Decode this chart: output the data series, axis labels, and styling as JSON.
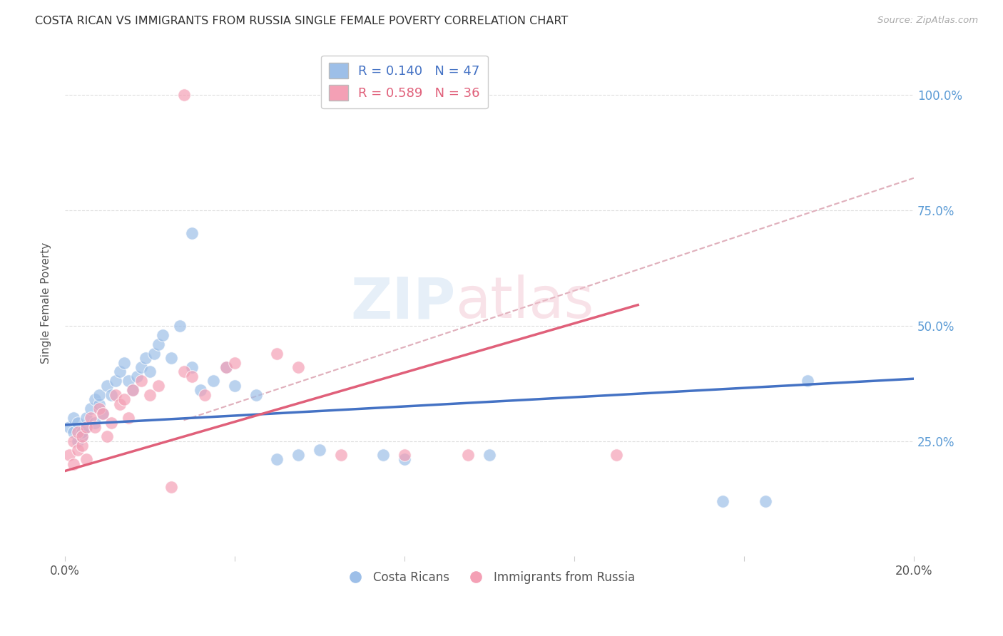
{
  "title": "COSTA RICAN VS IMMIGRANTS FROM RUSSIA SINGLE FEMALE POVERTY CORRELATION CHART",
  "source": "Source: ZipAtlas.com",
  "ylabel": "Single Female Poverty",
  "xlim": [
    0.0,
    0.2
  ],
  "ylim": [
    0.0,
    1.1
  ],
  "ytick_positions": [
    0.25,
    0.5,
    0.75,
    1.0
  ],
  "ytick_labels": [
    "25.0%",
    "50.0%",
    "75.0%",
    "100.0%"
  ],
  "xtick_positions": [
    0.0,
    0.04,
    0.08,
    0.12,
    0.16,
    0.2
  ],
  "xtick_labels": [
    "0.0%",
    "",
    "",
    "",
    "",
    "20.0%"
  ],
  "legend_line1": "R = 0.140   N = 47",
  "legend_line2": "R = 0.589   N = 36",
  "blue_color": "#9dbfe8",
  "pink_color": "#f4a0b5",
  "blue_line_color": "#4472c4",
  "pink_line_color": "#e0607a",
  "dashed_line_color": "#e0b0bc",
  "blue_scatter_x": [
    0.001,
    0.002,
    0.002,
    0.003,
    0.003,
    0.004,
    0.004,
    0.005,
    0.005,
    0.006,
    0.007,
    0.007,
    0.008,
    0.008,
    0.009,
    0.01,
    0.011,
    0.012,
    0.013,
    0.014,
    0.015,
    0.016,
    0.017,
    0.018,
    0.019,
    0.02,
    0.021,
    0.022,
    0.023,
    0.025,
    0.027,
    0.03,
    0.032,
    0.035,
    0.038,
    0.04,
    0.045,
    0.05,
    0.055,
    0.06,
    0.075,
    0.08,
    0.1,
    0.155,
    0.165,
    0.175,
    0.03
  ],
  "blue_scatter_y": [
    0.28,
    0.27,
    0.3,
    0.25,
    0.29,
    0.26,
    0.27,
    0.28,
    0.3,
    0.32,
    0.29,
    0.34,
    0.33,
    0.35,
    0.31,
    0.37,
    0.35,
    0.38,
    0.4,
    0.42,
    0.38,
    0.36,
    0.39,
    0.41,
    0.43,
    0.4,
    0.44,
    0.46,
    0.48,
    0.43,
    0.5,
    0.41,
    0.36,
    0.38,
    0.41,
    0.37,
    0.35,
    0.21,
    0.22,
    0.23,
    0.22,
    0.21,
    0.22,
    0.12,
    0.12,
    0.38,
    0.7
  ],
  "pink_scatter_x": [
    0.001,
    0.002,
    0.002,
    0.003,
    0.003,
    0.004,
    0.004,
    0.005,
    0.005,
    0.006,
    0.007,
    0.008,
    0.009,
    0.01,
    0.011,
    0.012,
    0.013,
    0.014,
    0.015,
    0.016,
    0.018,
    0.02,
    0.022,
    0.025,
    0.028,
    0.03,
    0.033,
    0.038,
    0.04,
    0.05,
    0.055,
    0.065,
    0.08,
    0.095,
    0.13,
    0.028
  ],
  "pink_scatter_y": [
    0.22,
    0.2,
    0.25,
    0.23,
    0.27,
    0.24,
    0.26,
    0.28,
    0.21,
    0.3,
    0.28,
    0.32,
    0.31,
    0.26,
    0.29,
    0.35,
    0.33,
    0.34,
    0.3,
    0.36,
    0.38,
    0.35,
    0.37,
    0.15,
    0.4,
    0.39,
    0.35,
    0.41,
    0.42,
    0.44,
    0.41,
    0.22,
    0.22,
    0.22,
    0.22,
    1.0
  ],
  "blue_trend_x": [
    0.0,
    0.2
  ],
  "blue_trend_y": [
    0.285,
    0.385
  ],
  "pink_trend_x": [
    0.0,
    0.135
  ],
  "pink_trend_y": [
    0.185,
    0.545
  ],
  "dashed_trend_x": [
    0.028,
    0.2
  ],
  "dashed_trend_y": [
    0.295,
    0.82
  ]
}
